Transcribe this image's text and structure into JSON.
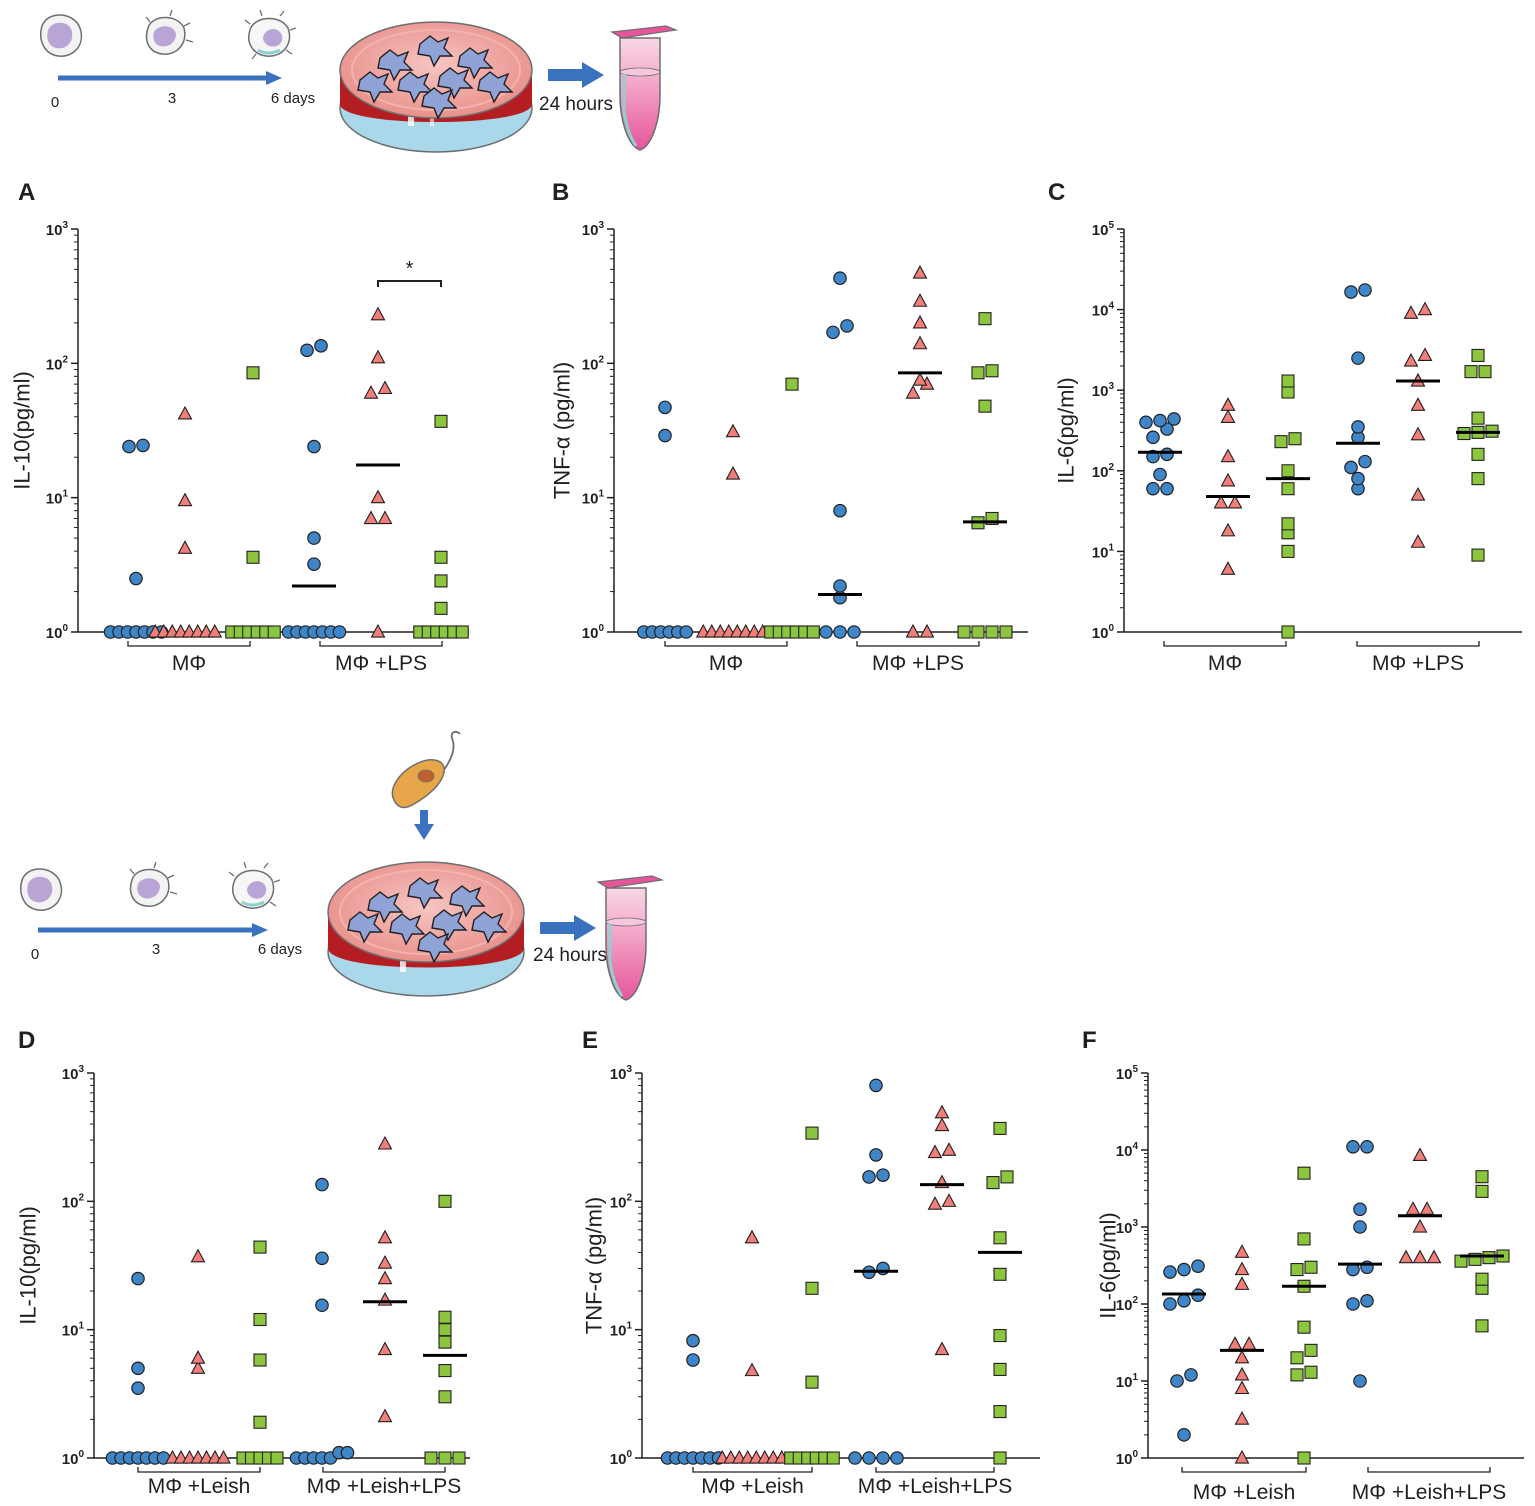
{
  "workflow_top": {
    "timeline_ticks": [
      "0",
      "3",
      "6 days"
    ],
    "incubation_label": "24 hours"
  },
  "workflow_bottom": {
    "timeline_ticks": [
      "0",
      "3",
      "6 days"
    ],
    "incubation_label": "24 hours"
  },
  "colors": {
    "series1": "#3f86c8",
    "series2": "#ef7f78",
    "series3": "#8cc63f",
    "arrow": "#3a72c0",
    "dish": "#b41e23",
    "tube": "#e6559a"
  },
  "chart_data": [
    {
      "panel": "A",
      "type": "scatter",
      "ylabel": "IL-10(pg/ml)",
      "yscale": "log",
      "ylim": [
        1,
        1000
      ],
      "y_ticks": [
        {
          "e": "0"
        },
        {
          "e": "1"
        },
        {
          "e": "2"
        },
        {
          "e": "3"
        }
      ],
      "groups": [
        "MΦ",
        "MΦ +LPS"
      ],
      "significance": {
        "label": "*",
        "group": 1,
        "from_series": 1,
        "to_series": 2
      },
      "series": [
        {
          "marker": "circle",
          "values": [
            [
              1,
              1,
              1,
              1,
              1,
              1,
              1,
              2.5,
              24,
              24.5
            ],
            [
              1,
              1,
              1,
              1,
              1,
              1,
              1,
              3.2,
              5,
              24,
              125,
              135
            ]
          ],
          "medians": [
            null,
            2.2
          ]
        },
        {
          "marker": "triangle",
          "values": [
            [
              1,
              1,
              1,
              1,
              1,
              1,
              1,
              1,
              4.2,
              9.5,
              42
            ],
            [
              1,
              7,
              7,
              10,
              60,
              65,
              110,
              230
            ]
          ],
          "medians": [
            null,
            17.5
          ]
        },
        {
          "marker": "square",
          "values": [
            [
              1,
              1,
              1,
              1,
              1,
              1,
              3.6,
              85
            ],
            [
              1,
              1,
              1,
              1,
              1,
              1,
              1.5,
              2.4,
              3.6,
              37
            ]
          ],
          "medians": [
            null,
            null
          ]
        }
      ]
    },
    {
      "panel": "B",
      "type": "scatter",
      "ylabel": "TNF-α (pg/ml)",
      "yscale": "log",
      "ylim": [
        1,
        1000
      ],
      "y_ticks": [
        {
          "e": "0"
        },
        {
          "e": "1"
        },
        {
          "e": "2"
        },
        {
          "e": "3"
        }
      ],
      "groups": [
        "MΦ",
        "MΦ +LPS"
      ],
      "series": [
        {
          "marker": "circle",
          "values": [
            [
              1,
              1,
              1,
              1,
              1,
              1,
              29,
              47
            ],
            [
              1,
              1,
              1,
              1.8,
              2.2,
              8,
              170,
              190,
              430
            ]
          ],
          "medians": [
            null,
            1.9
          ]
        },
        {
          "marker": "triangle",
          "values": [
            [
              1,
              1,
              1,
              1,
              1,
              1,
              1,
              1,
              15,
              31
            ],
            [
              1,
              1,
              60,
              70,
              75,
              140,
              200,
              290,
              470
            ]
          ],
          "medians": [
            null,
            85
          ]
        },
        {
          "marker": "square",
          "values": [
            [
              1,
              1,
              1,
              1,
              1,
              1,
              70
            ],
            [
              1,
              1,
              1,
              1,
              6.5,
              7,
              48,
              85,
              88,
              215
            ]
          ],
          "medians": [
            null,
            6.6
          ]
        }
      ]
    },
    {
      "panel": "C",
      "type": "scatter",
      "ylabel": "IL-6(pg/ml)",
      "yscale": "log",
      "ylim": [
        1,
        100000
      ],
      "y_ticks": [
        {
          "e": "0"
        },
        {
          "e": "1"
        },
        {
          "e": "2"
        },
        {
          "e": "3"
        },
        {
          "e": "4"
        },
        {
          "e": "5"
        }
      ],
      "groups": [
        "MΦ",
        "MΦ +LPS"
      ],
      "series": [
        {
          "marker": "circle",
          "values": [
            [
              60,
              60,
              90,
              150,
              160,
              260,
              330,
              400,
              420,
              440
            ]
          ],
          "medians": [
            170
          ]
        },
        {
          "marker": "triangle",
          "values": [
            [
              6,
              18,
              40,
              40,
              75,
              150,
              460,
              650
            ]
          ],
          "medians": [
            48
          ]
        },
        {
          "marker": "square",
          "values": [
            [
              1,
              10,
              17,
              22,
              60,
              100,
              230,
              250,
              950,
              1300
            ]
          ],
          "medians": [
            80
          ]
        },
        {
          "marker": "circle",
          "values": [
            [
              60,
              80,
              110,
              130,
              260,
              350,
              2500,
              16500,
              17500
            ]
          ],
          "medians": [
            220
          ]
        },
        {
          "marker": "triangle",
          "values": [
            [
              13,
              50,
              280,
              650,
              1300,
              2300,
              2700,
              9000,
              10000
            ]
          ],
          "medians": [
            1300
          ]
        },
        {
          "marker": "square",
          "values": [
            [
              9,
              80,
              160,
              290,
              300,
              310,
              450,
              1700,
              2700,
              1700
            ]
          ],
          "medians": [
            300
          ]
        }
      ]
    },
    {
      "panel": "D",
      "type": "scatter",
      "ylabel": "IL-10(pg/ml)",
      "yscale": "log",
      "ylim": [
        1,
        1000
      ],
      "y_ticks": [
        {
          "e": "0"
        },
        {
          "e": "1"
        },
        {
          "e": "2"
        },
        {
          "e": "3"
        }
      ],
      "groups": [
        "MΦ +Leish",
        "MΦ +Leish+LPS"
      ],
      "series": [
        {
          "marker": "circle",
          "values": [
            [
              1,
              1,
              1,
              1,
              1,
              1,
              1,
              3.5,
              5,
              25
            ],
            [
              1,
              1,
              1,
              1,
              1,
              1.1,
              1.1,
              15.5,
              36,
              135
            ]
          ],
          "medians": [
            null,
            null
          ]
        },
        {
          "marker": "triangle",
          "values": [
            [
              1,
              1,
              1,
              1,
              1,
              1,
              1,
              5,
              6,
              37
            ],
            [
              2.1,
              7,
              17,
              25,
              33,
              52,
              280
            ]
          ],
          "medians": [
            null,
            16.5
          ]
        },
        {
          "marker": "square",
          "values": [
            [
              1,
              1,
              1,
              1,
              1,
              1.9,
              5.8,
              12,
              44
            ],
            [
              1,
              1,
              1,
              3,
              4.8,
              8,
              10,
              12.5,
              100
            ]
          ],
          "medians": [
            null,
            6.3
          ]
        }
      ]
    },
    {
      "panel": "E",
      "type": "scatter",
      "ylabel": "TNF-α (pg/ml)",
      "yscale": "log",
      "ylim": [
        1,
        1000
      ],
      "y_ticks": [
        {
          "e": "0"
        },
        {
          "e": "1"
        },
        {
          "e": "2"
        },
        {
          "e": "3"
        }
      ],
      "groups": [
        "MΦ +Leish",
        "MΦ +Leish+LPS"
      ],
      "series": [
        {
          "marker": "circle",
          "values": [
            [
              1,
              1,
              1,
              1,
              1,
              1,
              1,
              5.8,
              8.2
            ],
            [
              1,
              1,
              1,
              1,
              28,
              30,
              155,
              160,
              230,
              800
            ]
          ],
          "medians": [
            null,
            28.5
          ]
        },
        {
          "marker": "triangle",
          "values": [
            [
              1,
              1,
              1,
              1,
              1,
              1,
              1,
              1,
              4.8,
              52
            ],
            [
              7,
              95,
              100,
              140,
              240,
              250,
              390,
              490
            ]
          ],
          "medians": [
            null,
            135
          ]
        },
        {
          "marker": "square",
          "values": [
            [
              1,
              1,
              1,
              1,
              1,
              1,
              3.9,
              21,
              340
            ],
            [
              1,
              2.3,
              4.9,
              9,
              27,
              52,
              140,
              155,
              370
            ]
          ],
          "medians": [
            null,
            40
          ]
        }
      ]
    },
    {
      "panel": "F",
      "type": "scatter",
      "ylabel": "IL-6(pg/ml)",
      "yscale": "log",
      "ylim": [
        1,
        100000
      ],
      "y_ticks": [
        {
          "e": "0"
        },
        {
          "e": "1"
        },
        {
          "e": "2"
        },
        {
          "e": "3"
        },
        {
          "e": "4"
        },
        {
          "e": "5"
        }
      ],
      "groups": [
        "MΦ +Leish",
        "MΦ +Leish+LPS"
      ],
      "series": [
        {
          "marker": "circle",
          "values": [
            [
              2,
              10,
              12,
              100,
              110,
              130,
              260,
              280,
              310
            ]
          ],
          "medians": [
            135
          ]
        },
        {
          "marker": "triangle",
          "values": [
            [
              1,
              3.2,
              8,
              12,
              20,
              30,
              30,
              180,
              280,
              470
            ]
          ],
          "medians": [
            25
          ]
        },
        {
          "marker": "square",
          "values": [
            [
              1,
              12,
              13,
              20,
              25,
              50,
              170,
              280,
              300,
              700,
              5000
            ]
          ],
          "medians": [
            170
          ]
        },
        {
          "marker": "circle",
          "values": [
            [
              10,
              100,
              110,
              280,
              300,
              1000,
              1700,
              11000,
              11000
            ]
          ],
          "medians": [
            330
          ]
        },
        {
          "marker": "triangle",
          "values": [
            [
              400,
              400,
              400,
              1000,
              1700,
              1700,
              8500
            ]
          ],
          "medians": [
            1400
          ]
        },
        {
          "marker": "square",
          "values": [
            [
              52,
              160,
              210,
              360,
              380,
              400,
              420,
              2900,
              4500
            ]
          ],
          "medians": [
            420
          ]
        }
      ]
    }
  ],
  "panel_labels": [
    "A",
    "B",
    "C",
    "D",
    "E",
    "F"
  ]
}
